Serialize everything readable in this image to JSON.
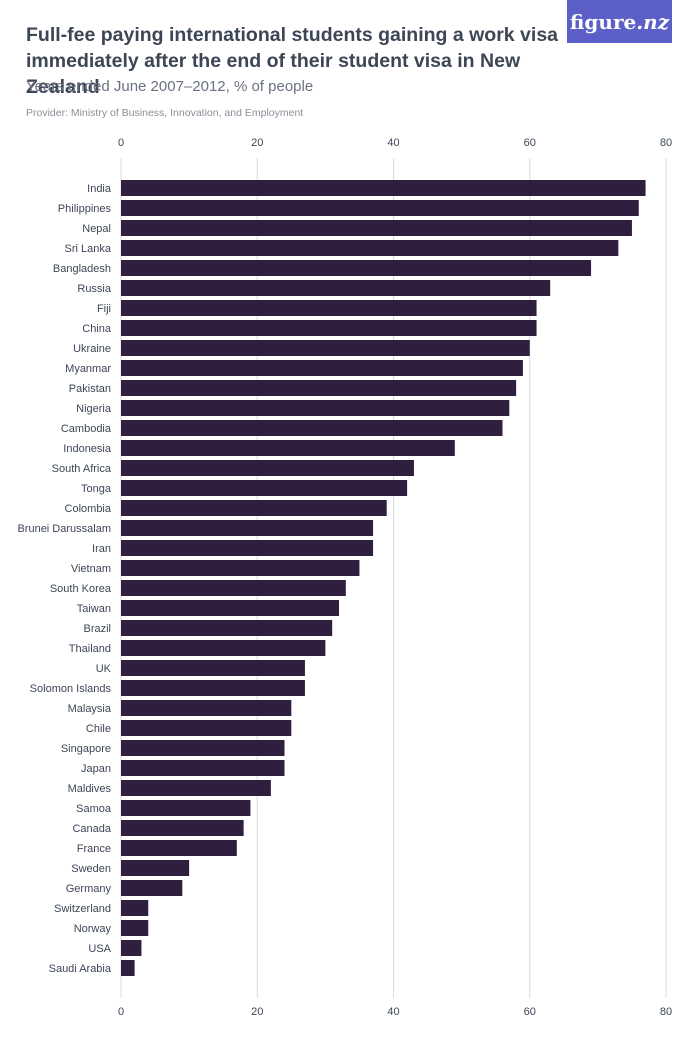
{
  "header": {
    "title": "Full-fee paying international students gaining a work visa immediately after the end of their student visa in New Zealand",
    "subtitle": "Years ended June 2007–2012, % of people",
    "provider": "Provider: Ministry of Business, Innovation, and Employment"
  },
  "logo": {
    "text_main": "figure",
    "text_suffix": ".nz"
  },
  "colors": {
    "bar": "#301e3f",
    "grid": "#d9dbe0",
    "title": "#3d4656",
    "logo_bg": "#5b5fc7"
  },
  "chart_data": {
    "type": "bar",
    "orientation": "horizontal",
    "title": "Full-fee paying international students gaining a work visa immediately after the end of their student visa in New Zealand",
    "xlabel": "",
    "ylabel": "",
    "xlim": [
      0,
      80
    ],
    "ticks": [
      0,
      20,
      40,
      60,
      80
    ],
    "grid": true,
    "categories": [
      "India",
      "Philippines",
      "Nepal",
      "Sri Lanka",
      "Bangladesh",
      "Russia",
      "Fiji",
      "China",
      "Ukraine",
      "Myanmar",
      "Pakistan",
      "Nigeria",
      "Cambodia",
      "Indonesia",
      "South Africa",
      "Tonga",
      "Colombia",
      "Brunei Darussalam",
      "Iran",
      "Vietnam",
      "South Korea",
      "Taiwan",
      "Brazil",
      "Thailand",
      "UK",
      "Solomon Islands",
      "Malaysia",
      "Chile",
      "Singapore",
      "Japan",
      "Maldives",
      "Samoa",
      "Canada",
      "France",
      "Sweden",
      "Germany",
      "Switzerland",
      "Norway",
      "USA",
      "Saudi Arabia"
    ],
    "values": [
      77,
      76,
      75,
      73,
      69,
      63,
      61,
      61,
      60,
      59,
      58,
      57,
      56,
      49,
      43,
      42,
      39,
      37,
      37,
      35,
      33,
      32,
      31,
      30,
      27,
      27,
      25,
      25,
      24,
      24,
      22,
      19,
      18,
      17,
      10,
      9,
      4,
      4,
      3,
      2
    ]
  }
}
